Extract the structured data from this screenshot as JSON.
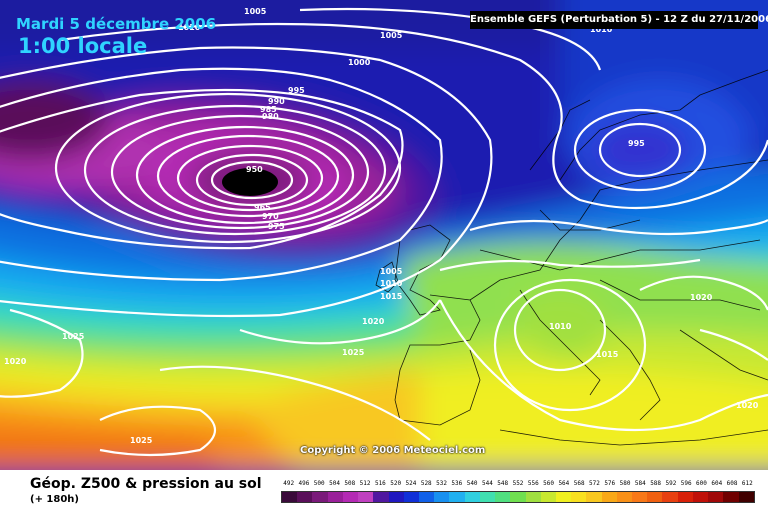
{
  "header": {
    "date": "Mardi 5 décembre 2006",
    "time": "1:00 locale",
    "run_info": "Ensemble GEFS (Perturbation 5)  - 12 Z du 27/11/2006"
  },
  "footer": {
    "title": "Géop. Z500 & pression au sol",
    "subtitle": "(+ 180h)",
    "copyright": "Copyright © 2006 Meteociel.com"
  },
  "scale": {
    "values": [
      "492",
      "496",
      "500",
      "504",
      "508",
      "512",
      "516",
      "520",
      "524",
      "528",
      "532",
      "536",
      "540",
      "544",
      "548",
      "552",
      "556",
      "560",
      "564",
      "568",
      "572",
      "576",
      "580",
      "584",
      "588",
      "592",
      "596",
      "600",
      "604",
      "608",
      "612"
    ],
    "colors": [
      "#3a0a3a",
      "#5a0f5a",
      "#7a1a7a",
      "#9a209a",
      "#b42ab4",
      "#c040c0",
      "#5018a0",
      "#2018c0",
      "#1030d8",
      "#1060e8",
      "#1890f0",
      "#20b0f0",
      "#30d0e0",
      "#40e0b0",
      "#50e080",
      "#70e050",
      "#a0e040",
      "#c8e830",
      "#f0f020",
      "#f8e020",
      "#f8c820",
      "#f8a818",
      "#f89018",
      "#f87818",
      "#f06010",
      "#e84010",
      "#d82008",
      "#c01008",
      "#a00808",
      "#700000",
      "#400000"
    ]
  },
  "isobars": [
    {
      "label": "1005",
      "pos": "top-center"
    },
    {
      "label": "1005",
      "pos": "north-atlantic"
    },
    {
      "label": "1000",
      "pos": "north-atlantic-inner"
    },
    {
      "label": "995",
      "pos": "low-outer"
    },
    {
      "label": "990",
      "pos": "low"
    },
    {
      "label": "985",
      "pos": "low"
    },
    {
      "label": "980",
      "pos": "low"
    },
    {
      "label": "950",
      "pos": "low-center"
    },
    {
      "label": "965",
      "pos": "low-south"
    },
    {
      "label": "970",
      "pos": "low-south"
    },
    {
      "label": "975",
      "pos": "low-south"
    },
    {
      "label": "1010",
      "pos": "top-left"
    },
    {
      "label": "1010",
      "pos": "top-right"
    },
    {
      "label": "995",
      "pos": "scandinavia"
    },
    {
      "label": "1005",
      "pos": "britain"
    },
    {
      "label": "1010",
      "pos": "britain"
    },
    {
      "label": "1015",
      "pos": "britain"
    },
    {
      "label": "1020",
      "pos": "bay-of-biscay"
    },
    {
      "label": "1025",
      "pos": "atlantic-south"
    },
    {
      "label": "1025",
      "pos": "atlantic-west"
    },
    {
      "label": "1020",
      "pos": "west-edge"
    },
    {
      "label": "1025",
      "pos": "south-atlantic"
    },
    {
      "label": "1010",
      "pos": "italy"
    },
    {
      "label": "1015",
      "pos": "balkans"
    },
    {
      "label": "1020",
      "pos": "east-europe"
    },
    {
      "label": "1020",
      "pos": "east-edge"
    }
  ]
}
